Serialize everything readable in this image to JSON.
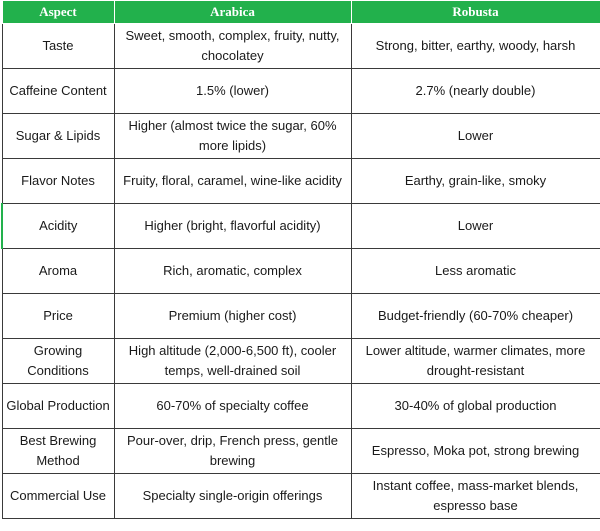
{
  "table": {
    "headers": [
      "Aspect",
      "Arabica",
      "Robusta"
    ],
    "rows": [
      {
        "aspect": "Taste",
        "arabica": "Sweet, smooth, complex, fruity, nutty, chocolatey",
        "robusta": "Strong, bitter, earthy, woody, harsh"
      },
      {
        "aspect": "Caffeine Content",
        "arabica": "1.5% (lower)",
        "robusta": "2.7% (nearly double)"
      },
      {
        "aspect": "Sugar & Lipids",
        "arabica": "Higher (almost twice the sugar, 60% more lipids)",
        "robusta": "Lower"
      },
      {
        "aspect": "Flavor Notes",
        "arabica": "Fruity, floral, caramel, wine-like acidity",
        "robusta": "Earthy, grain-like, smoky"
      },
      {
        "aspect": "Acidity",
        "arabica": "Higher (bright, flavorful acidity)",
        "robusta": "Lower"
      },
      {
        "aspect": "Aroma",
        "arabica": "Rich, aromatic, complex",
        "robusta": "Less aromatic"
      },
      {
        "aspect": "Price",
        "arabica": "Premium (higher cost)",
        "robusta": "Budget-friendly (60-70% cheaper)"
      },
      {
        "aspect": "Growing Conditions",
        "arabica": "High altitude (2,000-6,500 ft), cooler temps, well-drained soil",
        "robusta": "Lower altitude, warmer climates, more drought-resistant"
      },
      {
        "aspect": "Global Production",
        "arabica": "60-70% of specialty coffee",
        "robusta": "30-40% of global production"
      },
      {
        "aspect": "Best Brewing Method",
        "arabica": "Pour-over, drip, French press, gentle brewing",
        "robusta": "Espresso, Moka pot, strong brewing"
      },
      {
        "aspect": "Commercial Use",
        "arabica": "Specialty single-origin offerings",
        "robusta": "Instant coffee, mass-market blends, espresso base"
      }
    ]
  },
  "colors": {
    "header_bg": "#22b14c",
    "header_text": "#ffffff",
    "border": "#3a3a3a"
  }
}
